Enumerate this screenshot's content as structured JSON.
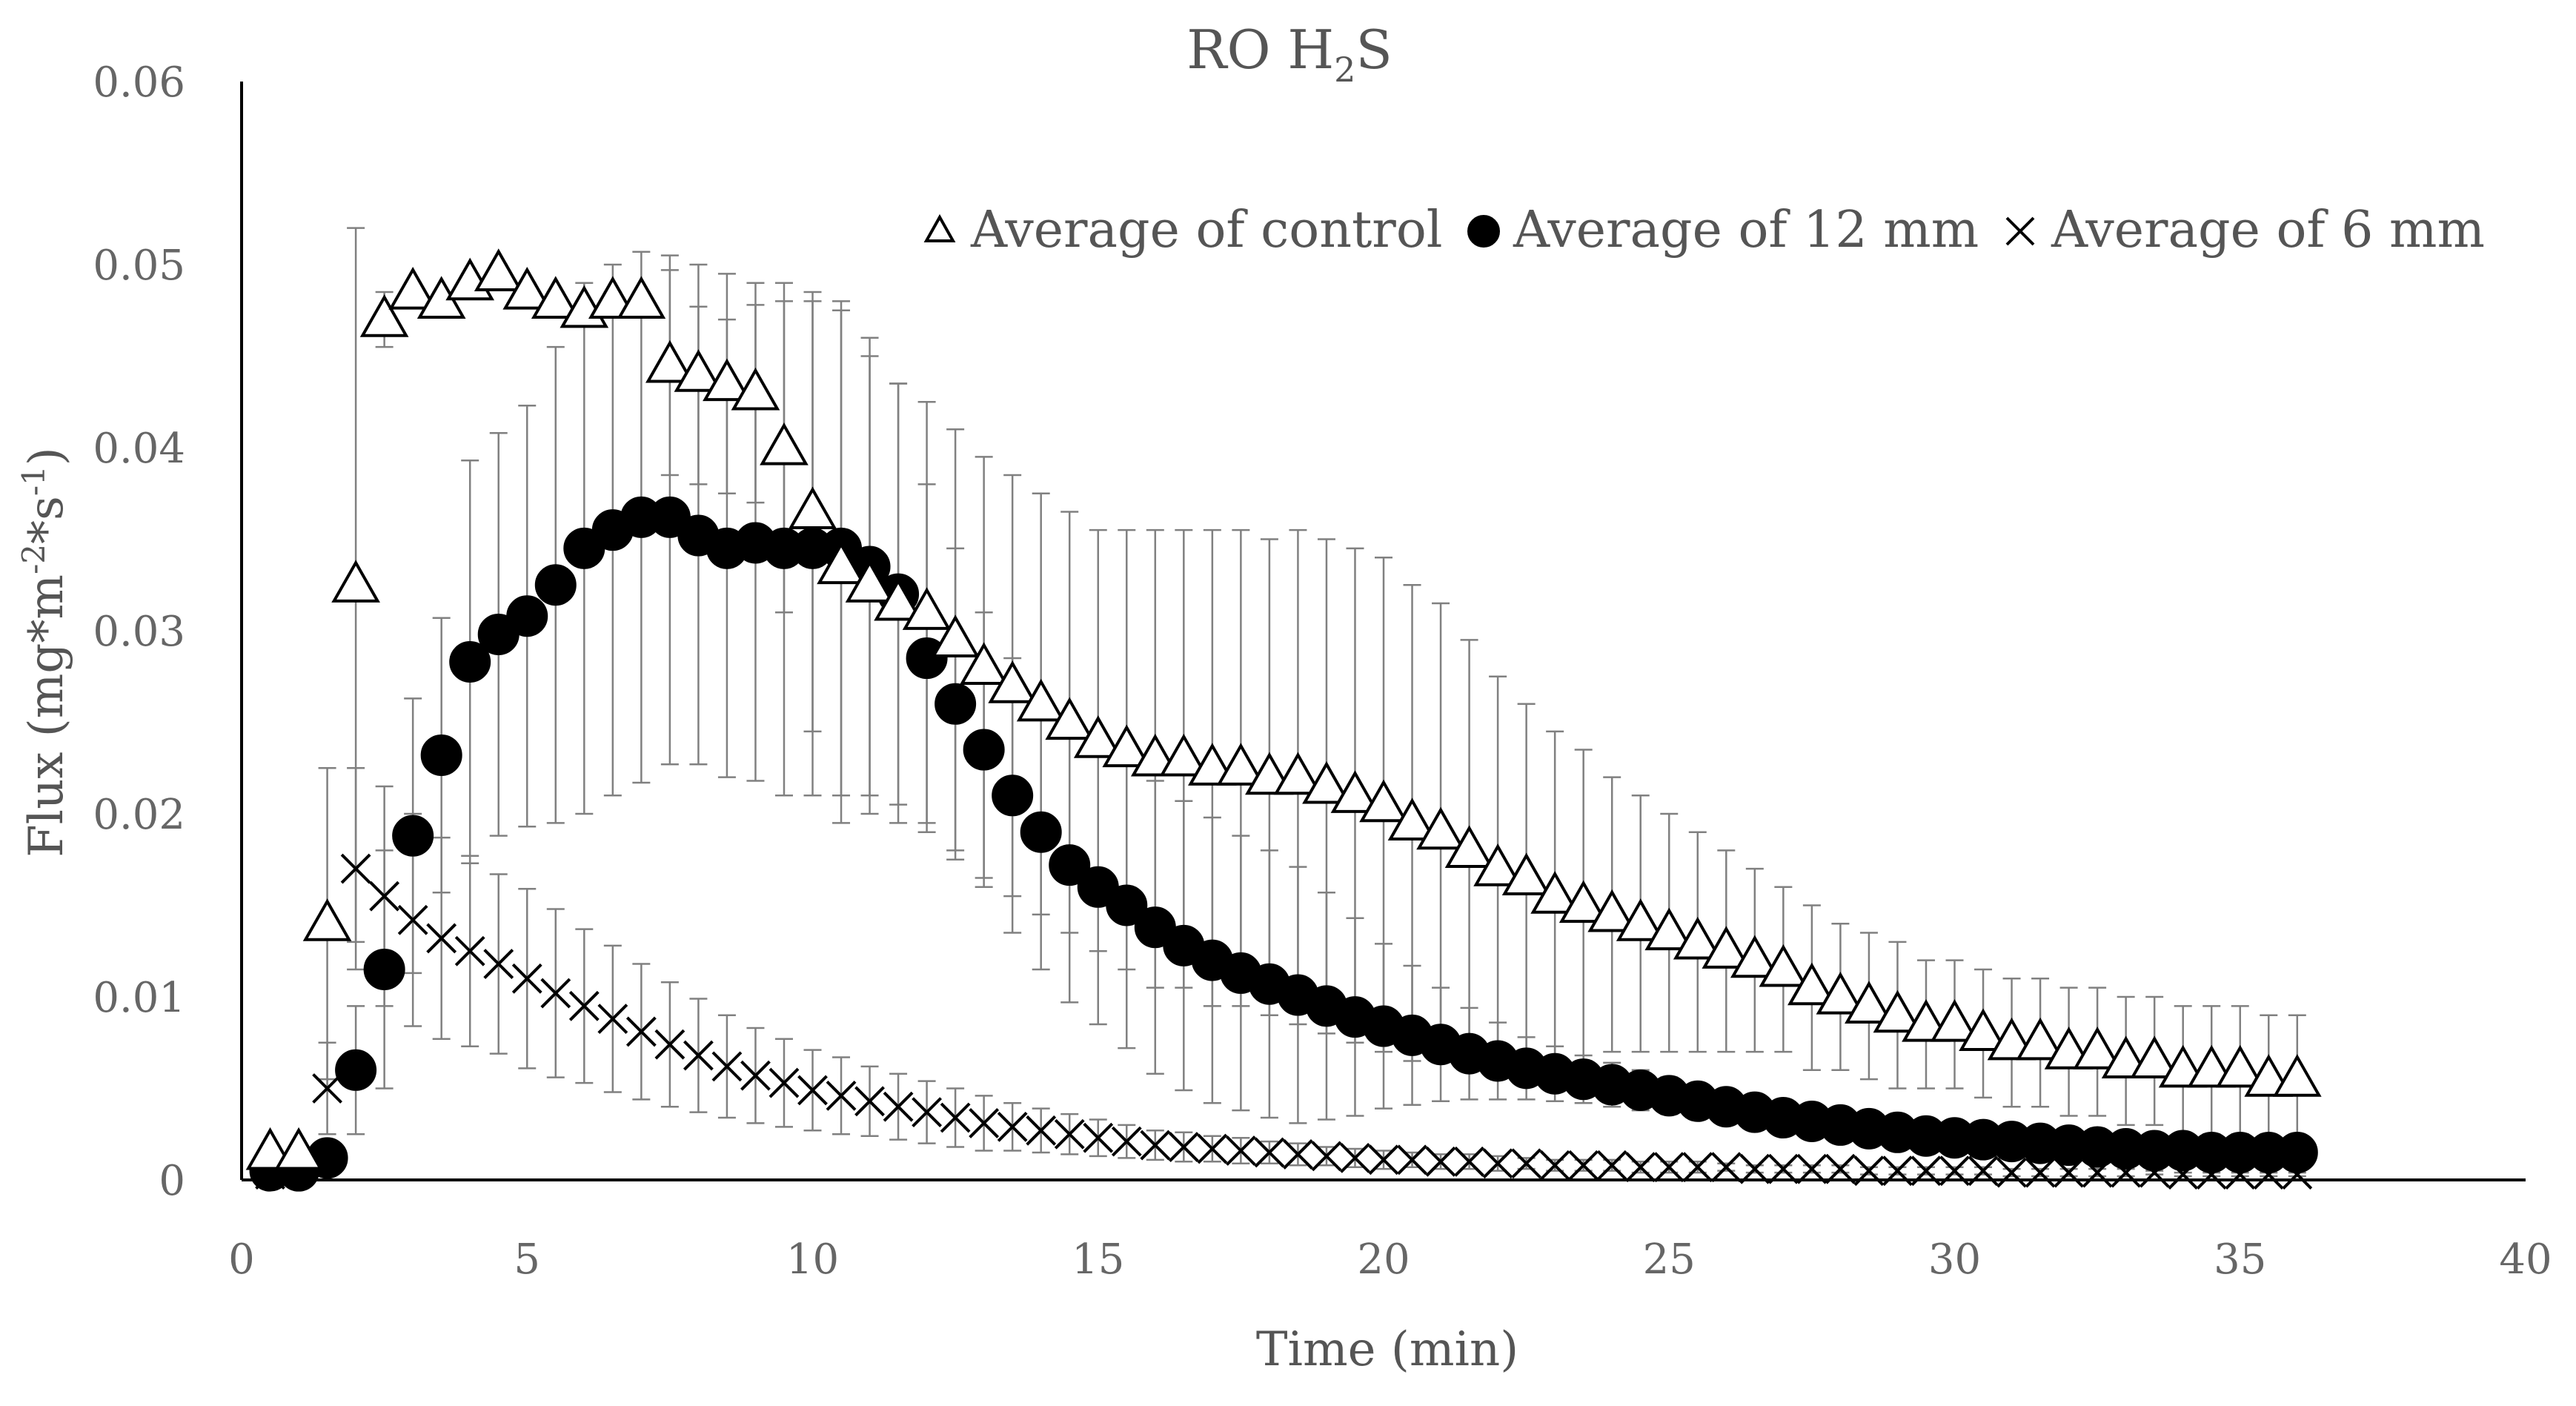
{
  "chart_data": {
    "type": "scatter",
    "title": "RO H2S",
    "title_main": "RO H",
    "title_sub": "2",
    "title_end": "S",
    "xlabel": "Time (min)",
    "ylabel": "Flux (mg*m-2*s-1)",
    "ylabel_parts": [
      "Flux (mg*m",
      "-2",
      "*s",
      "-1",
      ")"
    ],
    "xlim": [
      0,
      40
    ],
    "ylim": [
      0,
      0.06
    ],
    "xticks": [
      0,
      5,
      10,
      15,
      20,
      25,
      30,
      35,
      40
    ],
    "xtick_labels": [
      "0",
      "5",
      "10",
      "15",
      "20",
      "25",
      "30",
      "35",
      "40"
    ],
    "yticks": [
      0,
      0.01,
      0.02,
      0.03,
      0.04,
      0.05,
      0.06
    ],
    "ytick_labels": [
      "0",
      "0.01",
      "0.02",
      "0.03",
      "0.04",
      "0.05",
      "0.06"
    ],
    "legend_position": "top-right",
    "x": [
      0.5,
      1,
      1.5,
      2,
      2.5,
      3,
      3.5,
      4,
      4.5,
      5,
      5.5,
      6,
      6.5,
      7,
      7.5,
      8,
      8.5,
      9,
      9.5,
      10,
      10.5,
      11,
      11.5,
      12,
      12.5,
      13,
      13.5,
      14,
      14.5,
      15,
      15.5,
      16,
      16.5,
      17,
      17.5,
      18,
      18.5,
      19,
      19.5,
      20,
      20.5,
      21,
      21.5,
      22,
      22.5,
      23,
      23.5,
      24,
      24.5,
      25,
      25.5,
      26,
      26.5,
      27,
      27.5,
      28,
      28.5,
      29,
      29.5,
      30,
      30.5,
      31,
      31.5,
      32,
      32.5,
      33,
      33.5,
      34,
      34.5,
      35,
      35.5,
      36
    ],
    "series": [
      {
        "name": "Average of control",
        "marker": "triangle",
        "values": [
          0.0015,
          0.0015,
          0.014,
          0.0325,
          0.047,
          0.0485,
          0.048,
          0.049,
          0.0495,
          0.0485,
          0.048,
          0.0475,
          0.048,
          0.048,
          0.0445,
          0.044,
          0.0435,
          0.043,
          0.04,
          0.0365,
          0.0335,
          0.0325,
          0.0315,
          0.031,
          0.0295,
          0.028,
          0.027,
          0.026,
          0.025,
          0.024,
          0.0235,
          0.023,
          0.023,
          0.0225,
          0.0225,
          0.022,
          0.022,
          0.0215,
          0.021,
          0.0205,
          0.0195,
          0.019,
          0.018,
          0.017,
          0.0165,
          0.0155,
          0.015,
          0.0145,
          0.014,
          0.0135,
          0.013,
          0.0125,
          0.012,
          0.0115,
          0.0105,
          0.01,
          0.0095,
          0.009,
          0.0085,
          0.0085,
          0.008,
          0.0075,
          0.0075,
          0.007,
          0.007,
          0.0065,
          0.0065,
          0.006,
          0.006,
          0.006,
          0.0055,
          0.0055
        ],
        "errors": [
          0.0005,
          0.0005,
          0.0085,
          0.0195,
          0.0015,
          0.0005,
          0.0005,
          0.0005,
          0.0005,
          0.0005,
          0.0005,
          0.0005,
          0.0005,
          0.0005,
          0.006,
          0.006,
          0.006,
          0.006,
          0.009,
          0.012,
          0.014,
          0.0125,
          0.012,
          0.0115,
          0.0115,
          0.0115,
          0.0115,
          0.0115,
          0.0115,
          0.0115,
          0.012,
          0.0125,
          0.0125,
          0.013,
          0.013,
          0.013,
          0.0135,
          0.0135,
          0.0135,
          0.0135,
          0.013,
          0.0125,
          0.0115,
          0.0105,
          0.0095,
          0.009,
          0.0085,
          0.0075,
          0.007,
          0.0065,
          0.006,
          0.0055,
          0.005,
          0.0045,
          0.0045,
          0.004,
          0.004,
          0.004,
          0.0035,
          0.0035,
          0.0035,
          0.0035,
          0.0035,
          0.0035,
          0.0035,
          0.0035,
          0.0035,
          0.0035,
          0.0035,
          0.0035,
          0.0035,
          0.0035
        ]
      },
      {
        "name": "Average of 12 mm",
        "marker": "circle",
        "values": [
          0.0005,
          0.0005,
          0.0012,
          0.006,
          0.0115,
          0.0188,
          0.0232,
          0.0283,
          0.0298,
          0.0308,
          0.0325,
          0.0345,
          0.0355,
          0.0362,
          0.0362,
          0.0352,
          0.0345,
          0.0348,
          0.0345,
          0.0345,
          0.0345,
          0.0335,
          0.032,
          0.0285,
          0.026,
          0.0235,
          0.021,
          0.019,
          0.0172,
          0.016,
          0.015,
          0.0138,
          0.0128,
          0.012,
          0.0113,
          0.0107,
          0.0101,
          0.0095,
          0.0089,
          0.0084,
          0.0079,
          0.0074,
          0.0069,
          0.0065,
          0.0061,
          0.0058,
          0.0055,
          0.0052,
          0.0049,
          0.0046,
          0.0043,
          0.004,
          0.0037,
          0.0034,
          0.0032,
          0.003,
          0.0028,
          0.0026,
          0.0024,
          0.0023,
          0.0022,
          0.0021,
          0.002,
          0.0019,
          0.0018,
          0.0017,
          0.0016,
          0.0016,
          0.0015,
          0.0015,
          0.0015,
          0.0015
        ],
        "errors": [
          0.0003,
          0.0003,
          0.0005,
          0.0035,
          0.0065,
          0.0075,
          0.0075,
          0.011,
          0.011,
          0.0115,
          0.013,
          0.0145,
          0.0145,
          0.0145,
          0.0135,
          0.0125,
          0.0125,
          0.013,
          0.0135,
          0.0135,
          0.0135,
          0.0125,
          0.0115,
          0.0095,
          0.0085,
          0.0075,
          0.0075,
          0.0075,
          0.0075,
          0.0075,
          0.0078,
          0.008,
          0.0079,
          0.0078,
          0.0075,
          0.0073,
          0.007,
          0.0062,
          0.0054,
          0.0045,
          0.0038,
          0.0031,
          0.0025,
          0.0021,
          0.0017,
          0.0015,
          0.0013,
          0.0012,
          0.0011,
          0.001,
          0.0009,
          0.0008,
          0.0008,
          0.0007,
          0.0007,
          0.0007,
          0.0006,
          0.0006,
          0.0006,
          0.0005,
          0.0005,
          0.0005,
          0.0005,
          0.0005,
          0.0004,
          0.0004,
          0.0004,
          0.0004,
          0.0004,
          0.0004,
          0.0004,
          0.0004
        ]
      },
      {
        "name": "Average of 6 mm",
        "marker": "x",
        "values": [
          0.0003,
          0.0005,
          0.005,
          0.017,
          0.0155,
          0.0142,
          0.0132,
          0.0125,
          0.0118,
          0.011,
          0.0102,
          0.0095,
          0.0088,
          0.0081,
          0.0074,
          0.0068,
          0.0062,
          0.0057,
          0.0053,
          0.0049,
          0.0046,
          0.0043,
          0.004,
          0.0037,
          0.0034,
          0.0031,
          0.0029,
          0.0027,
          0.0025,
          0.0023,
          0.0021,
          0.0019,
          0.0018,
          0.0017,
          0.0016,
          0.0015,
          0.0014,
          0.0013,
          0.0012,
          0.0011,
          0.0011,
          0.001,
          0.001,
          0.0009,
          0.0009,
          0.0008,
          0.0008,
          0.0008,
          0.0007,
          0.0007,
          0.0007,
          0.0007,
          0.0006,
          0.0006,
          0.0006,
          0.0006,
          0.0005,
          0.0005,
          0.0005,
          0.0005,
          0.0005,
          0.0004,
          0.0004,
          0.0004,
          0.0004,
          0.0004,
          0.0004,
          0.0003,
          0.0003,
          0.0003,
          0.0003,
          0.0003
        ],
        "errors": [
          0.0002,
          0.0003,
          0.0025,
          0.0055,
          0.006,
          0.0058,
          0.0055,
          0.0052,
          0.0049,
          0.0049,
          0.0046,
          0.0042,
          0.004,
          0.0037,
          0.0034,
          0.0031,
          0.0028,
          0.0026,
          0.0024,
          0.0022,
          0.0021,
          0.0019,
          0.0018,
          0.0017,
          0.0016,
          0.0015,
          0.0013,
          0.0012,
          0.0011,
          0.001,
          0.0009,
          0.0008,
          0.0008,
          0.0007,
          0.0007,
          0.0006,
          0.0006,
          0.0005,
          0.0005,
          0.0005,
          0.0004,
          0.0004,
          0.0004,
          0.0004,
          0.0003,
          0.0003,
          0.0003,
          0.0003,
          0.0003,
          0.0003,
          0.0003,
          0.0002,
          0.0002,
          0.0002,
          0.0002,
          0.0002,
          0.0002,
          0.0002,
          0.0002,
          0.0002,
          0.0002,
          0.0002,
          0.0002,
          0.0002,
          0.0002,
          0.0002,
          0.0001,
          0.0001,
          0.0001,
          0.0001,
          0.0001,
          0.0001
        ]
      }
    ]
  }
}
